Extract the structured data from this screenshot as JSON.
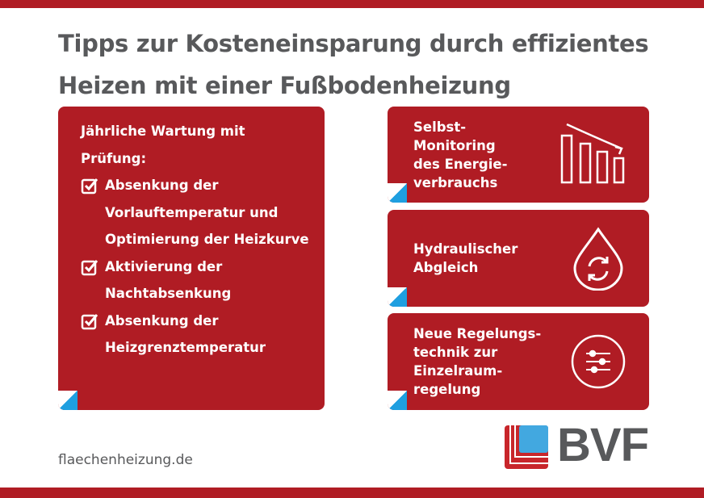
{
  "title": {
    "line1": "Tipps zur Kosteneinsparung durch effizientes",
    "line2": "Heizen mit einer Fußbodenheizung"
  },
  "left_card": {
    "heading_line1": "Jährliche Wartung mit",
    "heading_line2": "Prüfung:",
    "items": [
      {
        "lines": [
          "Absenkung der",
          "Vorlauftemperatur und",
          "Optimierung der Heizkurve"
        ]
      },
      {
        "lines": [
          "Aktivierung der",
          "Nachtabsenkung"
        ]
      },
      {
        "lines": [
          "Absenkung der",
          "Heizgrenztemperatur"
        ]
      }
    ]
  },
  "right_cards": [
    {
      "lines": [
        "Selbst-",
        "Monitoring",
        "des Energie-",
        "verbrauchs"
      ],
      "icon": "declining-bar-chart-icon"
    },
    {
      "lines": [
        "Hydraulischer",
        "Abgleich"
      ],
      "icon": "water-drop-cycle-icon"
    },
    {
      "lines": [
        "Neue Regelungs-",
        "technik zur",
        "Einzelraum-",
        "regelung"
      ],
      "icon": "sliders-icon"
    }
  ],
  "footer": {
    "url": "flaechenheizung.de"
  },
  "logo": {
    "text": "BVF"
  },
  "colors": {
    "red": "#b01c24",
    "gray": "#58595b",
    "blue": "#1f9fe0"
  }
}
